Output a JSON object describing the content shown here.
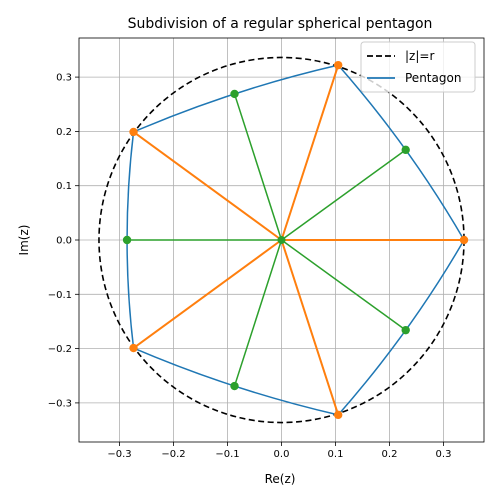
{
  "chart_data": {
    "type": "line",
    "title": "Subdivision of a regular spherical pentagon",
    "xlabel": "Re(z)",
    "ylabel": "Im(z)",
    "xlim": [
      -0.375,
      0.375
    ],
    "ylim": [
      -0.372,
      0.372
    ],
    "xticks": [
      -0.3,
      -0.2,
      -0.1,
      0.0,
      0.1,
      0.2,
      0.3
    ],
    "xtick_labels": [
      "−0.3",
      "−0.2",
      "−0.1",
      "0.0",
      "0.1",
      "0.2",
      "0.3"
    ],
    "yticks": [
      -0.3,
      -0.2,
      -0.1,
      0.0,
      0.1,
      0.2,
      0.3
    ],
    "ytick_labels": [
      "−0.3",
      "−0.2",
      "−0.1",
      "0.0",
      "0.1",
      "0.2",
      "0.3"
    ],
    "grid": true,
    "aspect": "equal",
    "legend": {
      "position": "top-right",
      "entries": [
        {
          "label": "|z|=r",
          "style": "dashed",
          "color": "#000000"
        },
        {
          "label": "Pentagon",
          "style": "solid",
          "color": "#1f77b4"
        }
      ]
    },
    "circle": {
      "radius": 0.338,
      "color": "#000000",
      "style": "dashed"
    },
    "pentagon_vertices": [
      {
        "x": 0.338,
        "y": 0.0
      },
      {
        "x": 0.105,
        "y": 0.322
      },
      {
        "x": -0.274,
        "y": 0.199
      },
      {
        "x": -0.274,
        "y": -0.199
      },
      {
        "x": 0.105,
        "y": -0.322
      }
    ],
    "edge_midpoints": [
      {
        "x": 0.23,
        "y": 0.166
      },
      {
        "x": -0.087,
        "y": 0.269
      },
      {
        "x": -0.286,
        "y": 0.0
      },
      {
        "x": -0.087,
        "y": -0.269
      },
      {
        "x": 0.23,
        "y": -0.166
      }
    ],
    "center": {
      "x": 0.0,
      "y": 0.0
    },
    "colors": {
      "pentagon": "#1f77b4",
      "vertex_spokes": "#ff7f0e",
      "midpoint_spokes": "#2ca02c"
    }
  }
}
